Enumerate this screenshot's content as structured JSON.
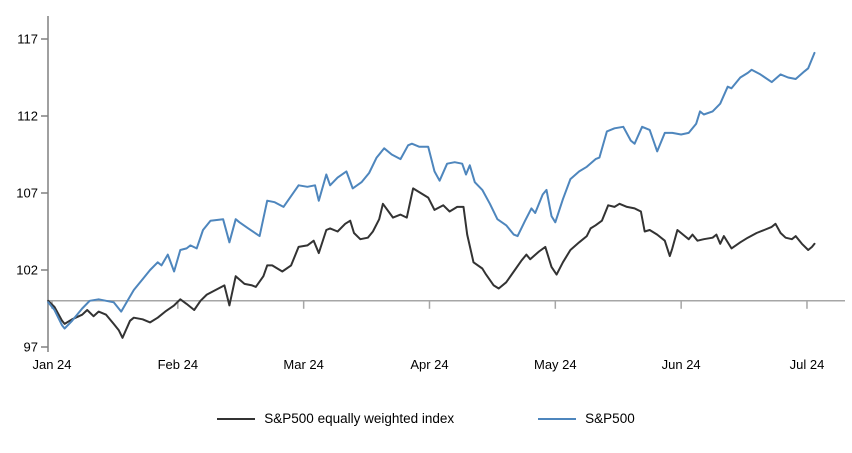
{
  "figure": {
    "background": "#ffffff",
    "text_color": "#000000",
    "axis_color": "#808080",
    "baseline_color": "#a6a6a6"
  },
  "chart_data": {
    "type": "line",
    "title": "",
    "xlabel": "",
    "ylabel": "",
    "grid": "off",
    "legend_position": "bottom-center",
    "x_axis": {
      "unit": "months-from-Jan-2024",
      "tick_positions": [
        0,
        1,
        2,
        3,
        4,
        5,
        6
      ],
      "tick_labels": [
        "Jan 24",
        "Feb 24",
        "Mar 24",
        "Apr 24",
        "May 24",
        "Jun 24",
        "Jul 24"
      ],
      "range": [
        -0.03,
        6.3
      ]
    },
    "y_axis": {
      "tick_values": [
        97,
        102,
        107,
        112,
        117
      ],
      "tick_labels": [
        "97",
        "102",
        "107",
        "112",
        "117"
      ],
      "range": [
        97,
        118.5
      ],
      "baseline_value": 100
    },
    "series": [
      {
        "name": "S&P500 equally weighted index",
        "color": "#333333",
        "points": [
          [
            -0.03,
            100.0
          ],
          [
            0.02,
            99.6
          ],
          [
            0.08,
            98.7
          ],
          [
            0.1,
            98.5
          ],
          [
            0.16,
            98.8
          ],
          [
            0.24,
            99.1
          ],
          [
            0.28,
            99.4
          ],
          [
            0.33,
            99.0
          ],
          [
            0.37,
            99.3
          ],
          [
            0.43,
            99.1
          ],
          [
            0.49,
            98.5
          ],
          [
            0.53,
            98.1
          ],
          [
            0.56,
            97.6
          ],
          [
            0.62,
            98.7
          ],
          [
            0.65,
            98.9
          ],
          [
            0.72,
            98.8
          ],
          [
            0.78,
            98.6
          ],
          [
            0.84,
            98.9
          ],
          [
            0.9,
            99.3
          ],
          [
            0.97,
            99.7
          ],
          [
            1.02,
            100.1
          ],
          [
            1.07,
            99.8
          ],
          [
            1.13,
            99.4
          ],
          [
            1.18,
            100.0
          ],
          [
            1.23,
            100.4
          ],
          [
            1.3,
            100.7
          ],
          [
            1.37,
            101.0
          ],
          [
            1.41,
            99.7
          ],
          [
            1.46,
            101.6
          ],
          [
            1.53,
            101.1
          ],
          [
            1.59,
            101.0
          ],
          [
            1.62,
            100.9
          ],
          [
            1.68,
            101.6
          ],
          [
            1.71,
            102.3
          ],
          [
            1.75,
            102.3
          ],
          [
            1.83,
            101.9
          ],
          [
            1.9,
            102.3
          ],
          [
            1.96,
            103.5
          ],
          [
            2.03,
            103.6
          ],
          [
            2.08,
            103.9
          ],
          [
            2.12,
            103.1
          ],
          [
            2.18,
            104.6
          ],
          [
            2.21,
            104.7
          ],
          [
            2.27,
            104.5
          ],
          [
            2.33,
            105.0
          ],
          [
            2.37,
            105.2
          ],
          [
            2.4,
            104.4
          ],
          [
            2.45,
            104.0
          ],
          [
            2.51,
            104.1
          ],
          [
            2.55,
            104.5
          ],
          [
            2.6,
            105.3
          ],
          [
            2.63,
            106.3
          ],
          [
            2.71,
            105.4
          ],
          [
            2.77,
            105.6
          ],
          [
            2.82,
            105.4
          ],
          [
            2.87,
            107.3
          ],
          [
            2.91,
            107.1
          ],
          [
            2.99,
            106.7
          ],
          [
            3.04,
            105.9
          ],
          [
            3.11,
            106.2
          ],
          [
            3.16,
            105.8
          ],
          [
            3.22,
            106.1
          ],
          [
            3.27,
            106.1
          ],
          [
            3.3,
            104.3
          ],
          [
            3.35,
            102.5
          ],
          [
            3.42,
            102.1
          ],
          [
            3.45,
            101.7
          ],
          [
            3.51,
            101.0
          ],
          [
            3.55,
            100.8
          ],
          [
            3.61,
            101.2
          ],
          [
            3.67,
            101.9
          ],
          [
            3.73,
            102.6
          ],
          [
            3.77,
            103.0
          ],
          [
            3.8,
            102.7
          ],
          [
            3.87,
            103.2
          ],
          [
            3.92,
            103.5
          ],
          [
            3.97,
            102.2
          ],
          [
            4.01,
            101.7
          ],
          [
            4.06,
            102.5
          ],
          [
            4.12,
            103.3
          ],
          [
            4.19,
            103.8
          ],
          [
            4.25,
            104.2
          ],
          [
            4.28,
            104.7
          ],
          [
            4.32,
            104.9
          ],
          [
            4.37,
            105.2
          ],
          [
            4.42,
            106.2
          ],
          [
            4.47,
            106.1
          ],
          [
            4.51,
            106.3
          ],
          [
            4.57,
            106.1
          ],
          [
            4.63,
            106.0
          ],
          [
            4.68,
            105.8
          ],
          [
            4.71,
            104.5
          ],
          [
            4.75,
            104.6
          ],
          [
            4.81,
            104.3
          ],
          [
            4.87,
            103.9
          ],
          [
            4.91,
            102.9
          ],
          [
            4.93,
            103.4
          ],
          [
            4.97,
            104.6
          ],
          [
            5.03,
            104.2
          ],
          [
            5.06,
            104.0
          ],
          [
            5.09,
            104.3
          ],
          [
            5.13,
            103.9
          ],
          [
            5.18,
            104.0
          ],
          [
            5.25,
            104.1
          ],
          [
            5.28,
            104.3
          ],
          [
            5.31,
            103.7
          ],
          [
            5.34,
            104.2
          ],
          [
            5.4,
            103.4
          ],
          [
            5.47,
            103.8
          ],
          [
            5.53,
            104.1
          ],
          [
            5.6,
            104.4
          ],
          [
            5.66,
            104.6
          ],
          [
            5.72,
            104.8
          ],
          [
            5.75,
            105.0
          ],
          [
            5.79,
            104.4
          ],
          [
            5.83,
            104.1
          ],
          [
            5.88,
            104.0
          ],
          [
            5.91,
            104.2
          ],
          [
            5.96,
            103.7
          ],
          [
            6.01,
            103.3
          ],
          [
            6.04,
            103.5
          ],
          [
            6.06,
            103.7
          ]
        ]
      },
      {
        "name": "S&P500",
        "color": "#4e86bd",
        "points": [
          [
            -0.03,
            99.9
          ],
          [
            0.02,
            99.4
          ],
          [
            0.08,
            98.4
          ],
          [
            0.1,
            98.2
          ],
          [
            0.16,
            98.7
          ],
          [
            0.24,
            99.5
          ],
          [
            0.3,
            100.0
          ],
          [
            0.37,
            100.1
          ],
          [
            0.43,
            100.0
          ],
          [
            0.49,
            99.9
          ],
          [
            0.55,
            99.3
          ],
          [
            0.6,
            100.0
          ],
          [
            0.65,
            100.7
          ],
          [
            0.72,
            101.4
          ],
          [
            0.78,
            102.0
          ],
          [
            0.84,
            102.5
          ],
          [
            0.87,
            102.3
          ],
          [
            0.92,
            103.0
          ],
          [
            0.97,
            101.9
          ],
          [
            1.02,
            103.3
          ],
          [
            1.07,
            103.4
          ],
          [
            1.1,
            103.6
          ],
          [
            1.15,
            103.4
          ],
          [
            1.2,
            104.6
          ],
          [
            1.26,
            105.2
          ],
          [
            1.36,
            105.3
          ],
          [
            1.41,
            103.8
          ],
          [
            1.46,
            105.3
          ],
          [
            1.49,
            105.1
          ],
          [
            1.56,
            104.7
          ],
          [
            1.65,
            104.2
          ],
          [
            1.71,
            106.5
          ],
          [
            1.77,
            106.4
          ],
          [
            1.84,
            106.1
          ],
          [
            1.9,
            106.8
          ],
          [
            1.96,
            107.5
          ],
          [
            2.03,
            107.4
          ],
          [
            2.09,
            107.5
          ],
          [
            2.12,
            106.5
          ],
          [
            2.18,
            108.2
          ],
          [
            2.21,
            107.5
          ],
          [
            2.27,
            108.0
          ],
          [
            2.34,
            108.4
          ],
          [
            2.39,
            107.3
          ],
          [
            2.46,
            107.7
          ],
          [
            2.52,
            108.3
          ],
          [
            2.58,
            109.3
          ],
          [
            2.64,
            109.9
          ],
          [
            2.7,
            109.5
          ],
          [
            2.77,
            109.2
          ],
          [
            2.83,
            110.1
          ],
          [
            2.86,
            110.2
          ],
          [
            2.92,
            110.0
          ],
          [
            2.99,
            110.0
          ],
          [
            3.04,
            108.4
          ],
          [
            3.08,
            107.8
          ],
          [
            3.14,
            108.9
          ],
          [
            3.2,
            109.0
          ],
          [
            3.26,
            108.9
          ],
          [
            3.29,
            108.2
          ],
          [
            3.32,
            108.8
          ],
          [
            3.36,
            107.7
          ],
          [
            3.42,
            107.2
          ],
          [
            3.48,
            106.3
          ],
          [
            3.54,
            105.3
          ],
          [
            3.61,
            104.9
          ],
          [
            3.67,
            104.3
          ],
          [
            3.7,
            104.2
          ],
          [
            3.76,
            105.2
          ],
          [
            3.81,
            106.0
          ],
          [
            3.84,
            105.7
          ],
          [
            3.9,
            106.9
          ],
          [
            3.93,
            107.2
          ],
          [
            3.97,
            105.5
          ],
          [
            4.0,
            105.1
          ],
          [
            4.06,
            106.6
          ],
          [
            4.12,
            107.9
          ],
          [
            4.19,
            108.4
          ],
          [
            4.25,
            108.7
          ],
          [
            4.32,
            109.2
          ],
          [
            4.35,
            109.3
          ],
          [
            4.41,
            111.0
          ],
          [
            4.47,
            111.2
          ],
          [
            4.54,
            111.3
          ],
          [
            4.6,
            110.4
          ],
          [
            4.63,
            110.2
          ],
          [
            4.69,
            111.3
          ],
          [
            4.75,
            111.1
          ],
          [
            4.81,
            109.7
          ],
          [
            4.87,
            110.9
          ],
          [
            4.93,
            110.9
          ],
          [
            5.0,
            110.8
          ],
          [
            5.06,
            110.9
          ],
          [
            5.12,
            111.5
          ],
          [
            5.15,
            112.3
          ],
          [
            5.18,
            112.1
          ],
          [
            5.25,
            112.3
          ],
          [
            5.31,
            112.8
          ],
          [
            5.37,
            113.9
          ],
          [
            5.4,
            113.8
          ],
          [
            5.47,
            114.5
          ],
          [
            5.53,
            114.8
          ],
          [
            5.56,
            115.0
          ],
          [
            5.63,
            114.7
          ],
          [
            5.72,
            114.2
          ],
          [
            5.79,
            114.7
          ],
          [
            5.85,
            114.5
          ],
          [
            5.91,
            114.4
          ],
          [
            5.98,
            114.9
          ],
          [
            6.01,
            115.1
          ],
          [
            6.06,
            116.1
          ]
        ]
      }
    ]
  },
  "legend": {
    "items": [
      {
        "label": "S&P500 equally weighted index",
        "color": "#333333"
      },
      {
        "label": "S&P500",
        "color": "#4e86bd"
      }
    ]
  }
}
